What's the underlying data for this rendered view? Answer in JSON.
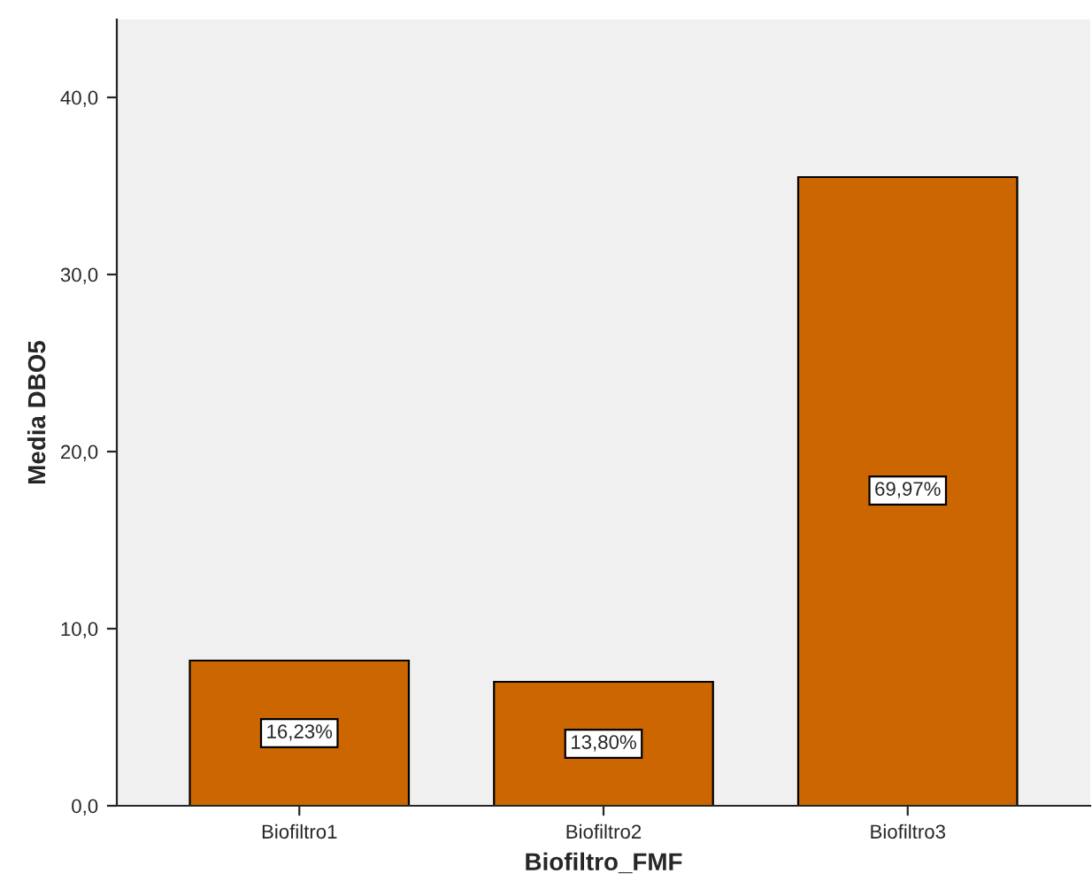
{
  "chart_data": {
    "type": "bar",
    "xlabel": "Biofiltro_FMF",
    "ylabel": "Media DBO5",
    "categories": [
      "Biofiltro1",
      "Biofiltro2",
      "Biofiltro3"
    ],
    "values": [
      8.2,
      7.0,
      35.5
    ],
    "color": "#cc6600",
    "annotations": [
      {
        "text": "16,23%",
        "x": "Biofiltro1",
        "y": 4.1
      },
      {
        "text": "13,80%",
        "x": "Biofiltro2",
        "y": 3.5
      },
      {
        "text": "69,97%",
        "x": "Biofiltro3",
        "y": 17.8
      }
    ],
    "ylim": [
      0,
      44.4
    ],
    "yticks": [
      {
        "value": 0,
        "label": "0,0"
      },
      {
        "value": 10,
        "label": "10,0"
      },
      {
        "value": 20,
        "label": "20,0"
      },
      {
        "value": 30,
        "label": "30,0"
      },
      {
        "value": 40,
        "label": "40,0"
      }
    ],
    "grid": false,
    "legend": false
  }
}
